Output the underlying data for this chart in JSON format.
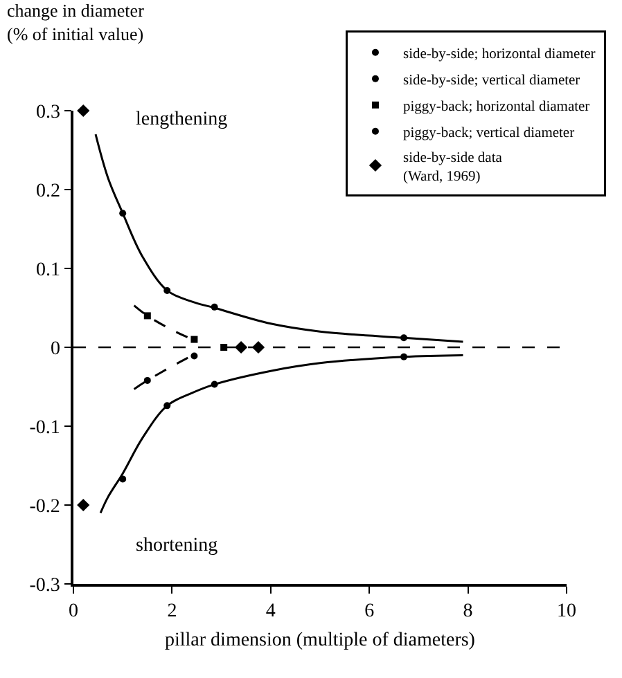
{
  "chart_data": {
    "type": "scatter",
    "xlabel": "pillar dimension (multiple of diameters)",
    "ylabel": "change in diameter\n(% of initial value)",
    "xlim": [
      0,
      10
    ],
    "ylim": [
      -0.3,
      0.3
    ],
    "xticks": [
      0,
      2,
      4,
      6,
      8,
      10
    ],
    "yticks": [
      0.3,
      0.2,
      0.1,
      0,
      -0.1,
      -0.2,
      -0.3
    ],
    "grid": false,
    "legend": "top right",
    "annotations": [
      "lengthening",
      "shortening"
    ],
    "ref_lines": [
      {
        "axis": "y",
        "value": 0,
        "label": null,
        "line_style": "dashed",
        "color": "#000000"
      }
    ],
    "series": [
      {
        "name": "side-by-side; horizontal diameter",
        "color": "#000000",
        "marker": "circle",
        "x": [
          1.0,
          1.9,
          2.86,
          6.7
        ],
        "values": [
          0.17,
          0.072,
          0.051,
          0.012
        ]
      },
      {
        "name": "side-by-side; vertical diameter",
        "color": "#000000",
        "marker": "circle",
        "x": [
          1.0,
          1.9,
          2.86,
          6.7
        ],
        "values": [
          -0.167,
          -0.074,
          -0.047,
          -0.012
        ]
      },
      {
        "name": "piggy-back; horizontal diamater",
        "color": "#000000",
        "marker": "square",
        "x": [
          1.5,
          2.45,
          3.05
        ],
        "values": [
          0.04,
          0.01,
          0
        ]
      },
      {
        "name": "piggy-back; vertical diameter",
        "color": "#000000",
        "marker": "circle",
        "x": [
          1.5,
          2.45
        ],
        "values": [
          -0.042,
          -0.011
        ]
      },
      {
        "name": "side-by-side data\n(Ward, 1969)",
        "color": "#000000",
        "marker": "diamond",
        "x": [
          0.2,
          0.2,
          3.4,
          3.75
        ],
        "values": [
          0.3,
          -0.2,
          0,
          0
        ]
      },
      {
        "type": "line",
        "color": "#000000",
        "line_style": "solid",
        "x": [
          0.45,
          0.7,
          1.0,
          1.4,
          1.9,
          2.4,
          2.86,
          4.0,
          5.0,
          6.7,
          7.9
        ],
        "values": [
          0.27,
          0.215,
          0.17,
          0.115,
          0.072,
          0.058,
          0.05,
          0.03,
          0.02,
          0.012,
          0.007
        ]
      },
      {
        "type": "line",
        "color": "#000000",
        "line_style": "solid",
        "x": [
          0.55,
          0.7,
          1.0,
          1.4,
          1.9,
          2.4,
          2.86,
          4.0,
          5.0,
          6.7,
          7.9
        ],
        "values": [
          -0.21,
          -0.19,
          -0.16,
          -0.115,
          -0.074,
          -0.058,
          -0.047,
          -0.03,
          -0.02,
          -0.012,
          -0.01
        ]
      },
      {
        "type": "line",
        "color": "#000000",
        "line_style": "dashed",
        "x": [
          1.23,
          1.5,
          2.0,
          2.45
        ],
        "values": [
          0.053,
          0.04,
          0.022,
          0.009
        ]
      },
      {
        "type": "line",
        "color": "#000000",
        "line_style": "dashed",
        "x": [
          1.23,
          1.5,
          2.0,
          2.45
        ],
        "values": [
          -0.053,
          -0.042,
          -0.024,
          -0.009
        ]
      }
    ]
  }
}
